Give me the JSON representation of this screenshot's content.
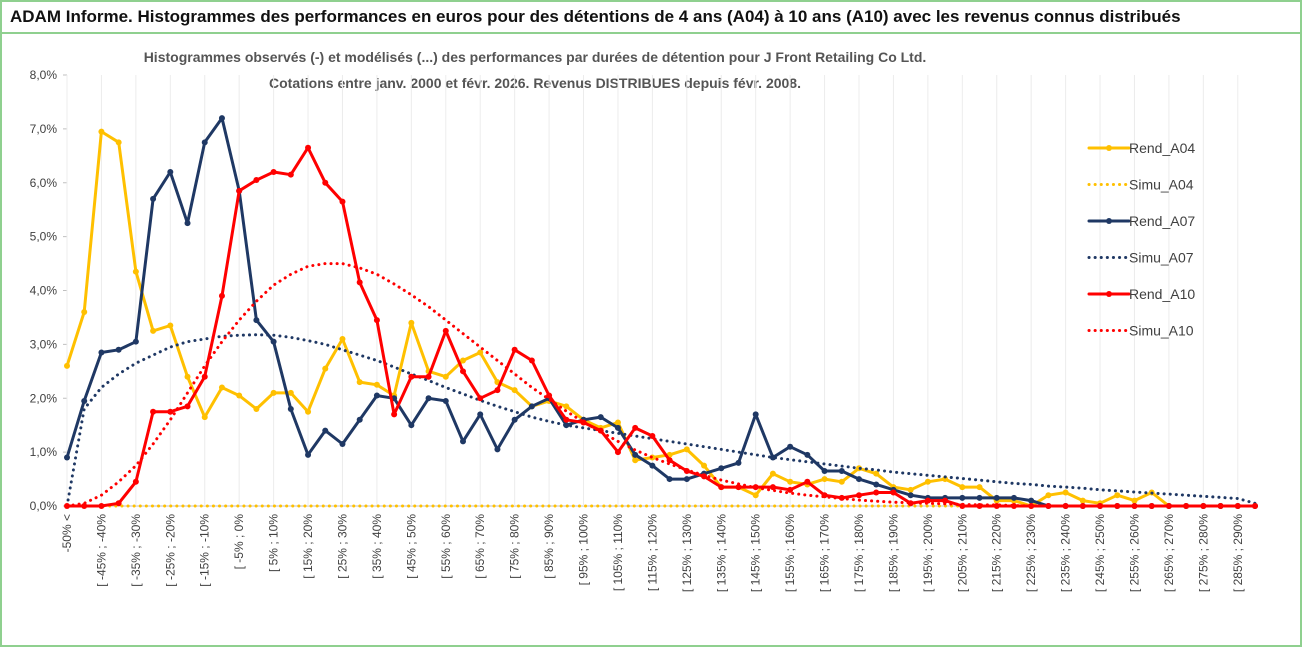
{
  "header": {
    "title": "ADAM Informe. Histogrammes des performances en euros pour des détentions de 4 ans (A04) à 10 ans (A10) avec les revenus connus distribués"
  },
  "chart_data": {
    "type": "line",
    "title": "Histogrammes observés (-) et modélisés (...) des performances par durées de détention pour J Front Retailing Co Ltd.",
    "subtitle": "Cotations entre janv. 2000 et févr. 2026. Revenus DISTRIBUES depuis févr. 2008.",
    "categories": [
      "-50% <",
      null,
      "[ -45% ; -40%",
      null,
      "[ -35% ; -30%",
      null,
      "[ -25% ; -20%",
      null,
      "[ -15% ; -10%",
      null,
      "[ -5% ; 0%",
      null,
      "[ 5% ; 10%",
      null,
      "[ 15% ; 20%",
      null,
      "[ 25% ; 30%",
      null,
      "[ 35% ; 40%",
      null,
      "[ 45% ; 50%",
      null,
      "[ 55% ; 60%",
      null,
      "[ 65% ; 70%",
      null,
      "[ 75% ; 80%",
      null,
      "[ 85% ; 90%",
      null,
      "[ 95% ; 100%",
      null,
      "[ 105% ; 110%",
      null,
      "[ 115% ; 120%",
      null,
      "[ 125% ; 130%",
      null,
      "[ 135% ; 140%",
      null,
      "[ 145% ; 150%",
      null,
      "[ 155% ; 160%",
      null,
      "[ 165% ; 170%",
      null,
      "[ 175% ; 180%",
      null,
      "[ 185% ; 190%",
      null,
      "[ 195% ; 200%",
      null,
      "[ 205% ; 210%",
      null,
      "[ 215% ; 220%",
      null,
      "[ 225% ; 230%",
      null,
      "[ 235% ; 240%",
      null,
      "[ 245% ; 250%",
      null,
      "[ 255% ; 260%",
      null,
      "[ 265% ; 270%",
      null,
      "[ 275% ; 280%",
      null,
      "[ 285% ; 290%",
      null
    ],
    "series": [
      {
        "name": "Rend_A04",
        "color": "#ffc000",
        "style": "solid",
        "values": [
          2.6,
          3.6,
          6.95,
          6.75,
          4.35,
          3.25,
          3.35,
          2.4,
          1.65,
          2.2,
          2.05,
          1.8,
          2.1,
          2.1,
          1.75,
          2.55,
          3.1,
          2.3,
          2.25,
          2.05,
          3.4,
          2.5,
          2.4,
          2.7,
          2.85,
          2.3,
          2.15,
          1.85,
          1.95,
          1.85,
          1.6,
          1.45,
          1.55,
          0.85,
          0.9,
          0.95,
          1.05,
          0.75,
          0.35,
          0.35,
          0.2,
          0.6,
          0.45,
          0.4,
          0.5,
          0.45,
          0.7,
          0.6,
          0.35,
          0.3,
          0.45,
          0.5,
          0.35,
          0.35,
          0.1,
          0.1,
          0,
          0.2,
          0.25,
          0.1,
          0.05,
          0.2,
          0.1,
          0.25,
          0,
          0,
          0,
          0,
          0,
          0
        ]
      },
      {
        "name": "Simu_A04",
        "color": "#ffc000",
        "style": "dotted",
        "values": [
          0,
          0,
          0,
          0,
          0,
          0,
          0,
          0,
          0,
          0,
          0,
          0,
          0,
          0,
          0,
          0,
          0,
          0,
          0,
          0,
          0,
          0,
          0,
          0,
          0,
          0,
          0,
          0,
          0,
          0,
          0,
          0,
          0,
          0,
          0,
          0,
          0,
          0,
          0,
          0,
          0,
          0,
          0,
          0,
          0,
          0,
          0,
          0,
          0,
          0,
          0,
          0,
          0,
          0,
          0,
          0,
          0,
          0,
          0,
          0,
          0,
          0,
          0,
          0,
          0,
          0,
          0,
          0,
          0,
          0
        ]
      },
      {
        "name": "Rend_A07",
        "color": "#1f3864",
        "style": "solid",
        "values": [
          0.9,
          1.95,
          2.85,
          2.9,
          3.05,
          5.7,
          6.2,
          5.25,
          6.75,
          7.2,
          5.85,
          3.45,
          3.05,
          1.8,
          0.95,
          1.4,
          1.15,
          1.6,
          2.05,
          2.0,
          1.5,
          2.0,
          1.95,
          1.2,
          1.7,
          1.05,
          1.6,
          1.85,
          2.0,
          1.5,
          1.6,
          1.65,
          1.45,
          0.95,
          0.75,
          0.5,
          0.5,
          0.6,
          0.7,
          0.8,
          1.7,
          0.9,
          1.1,
          0.95,
          0.65,
          0.65,
          0.5,
          0.4,
          0.3,
          0.2,
          0.15,
          0.15,
          0.15,
          0.15,
          0.15,
          0.15,
          0.1,
          0,
          0,
          0,
          0,
          0,
          0,
          0,
          0,
          0,
          0,
          0,
          0,
          0
        ]
      },
      {
        "name": "Simu_A07",
        "color": "#1f3864",
        "style": "dotted",
        "values": [
          0,
          1.8,
          2.2,
          2.45,
          2.65,
          2.8,
          2.95,
          3.05,
          3.1,
          3.15,
          3.17,
          3.18,
          3.17,
          3.13,
          3.07,
          3.0,
          2.9,
          2.8,
          2.7,
          2.58,
          2.45,
          2.33,
          2.2,
          2.08,
          1.96,
          1.85,
          1.75,
          1.65,
          1.57,
          1.5,
          1.45,
          1.4,
          1.35,
          1.3,
          1.25,
          1.2,
          1.15,
          1.1,
          1.05,
          1.0,
          0.95,
          0.9,
          0.86,
          0.82,
          0.78,
          0.74,
          0.7,
          0.67,
          0.63,
          0.6,
          0.57,
          0.54,
          0.51,
          0.48,
          0.45,
          0.42,
          0.4,
          0.37,
          0.35,
          0.33,
          0.3,
          0.28,
          0.26,
          0.24,
          0.22,
          0.2,
          0.18,
          0.16,
          0.14,
          0.05
        ]
      },
      {
        "name": "Rend_A10",
        "color": "#ff0000",
        "style": "solid",
        "values": [
          0,
          0,
          0,
          0.05,
          0.45,
          1.75,
          1.75,
          1.85,
          2.4,
          3.9,
          5.85,
          6.05,
          6.2,
          6.15,
          6.65,
          6.0,
          5.65,
          4.15,
          3.45,
          1.7,
          2.4,
          2.4,
          3.25,
          2.5,
          2.0,
          2.15,
          2.9,
          2.7,
          2.05,
          1.6,
          1.55,
          1.4,
          1.0,
          1.45,
          1.3,
          0.85,
          0.65,
          0.55,
          0.35,
          0.35,
          0.35,
          0.35,
          0.3,
          0.45,
          0.2,
          0.15,
          0.2,
          0.25,
          0.25,
          0.05,
          0.1,
          0.1,
          0,
          0,
          0,
          0,
          0,
          0,
          0,
          0,
          0,
          0,
          0,
          0,
          0,
          0,
          0,
          0,
          0,
          0
        ]
      },
      {
        "name": "Simu_A10",
        "color": "#ff0000",
        "style": "dotted",
        "values": [
          0,
          0.05,
          0.2,
          0.45,
          0.75,
          1.15,
          1.6,
          2.1,
          2.6,
          3.05,
          3.45,
          3.8,
          4.1,
          4.3,
          4.45,
          4.5,
          4.5,
          4.42,
          4.3,
          4.12,
          3.92,
          3.7,
          3.45,
          3.2,
          2.95,
          2.7,
          2.45,
          2.2,
          1.98,
          1.76,
          1.56,
          1.38,
          1.2,
          1.04,
          0.9,
          0.78,
          0.67,
          0.57,
          0.48,
          0.41,
          0.34,
          0.29,
          0.24,
          0.2,
          0.17,
          0.14,
          0.11,
          0.09,
          0.07,
          0.06,
          0.05,
          0.04,
          0.03,
          0.02,
          0.02,
          0.01,
          0,
          0,
          0,
          0,
          0,
          0,
          0,
          0,
          0,
          0,
          0,
          0,
          0,
          0
        ]
      }
    ],
    "ylim": [
      0,
      8
    ],
    "yticks": [
      {
        "value": 0,
        "label": "0,0%"
      },
      {
        "value": 1,
        "label": "1,0%"
      },
      {
        "value": 2,
        "label": "2,0%"
      },
      {
        "value": 3,
        "label": "3,0%"
      },
      {
        "value": 4,
        "label": "4,0%"
      },
      {
        "value": 5,
        "label": "5,0%"
      },
      {
        "value": 6,
        "label": "6,0%"
      },
      {
        "value": 7,
        "label": "7,0%"
      },
      {
        "value": 8,
        "label": "8,0%"
      }
    ],
    "legend": "right"
  }
}
